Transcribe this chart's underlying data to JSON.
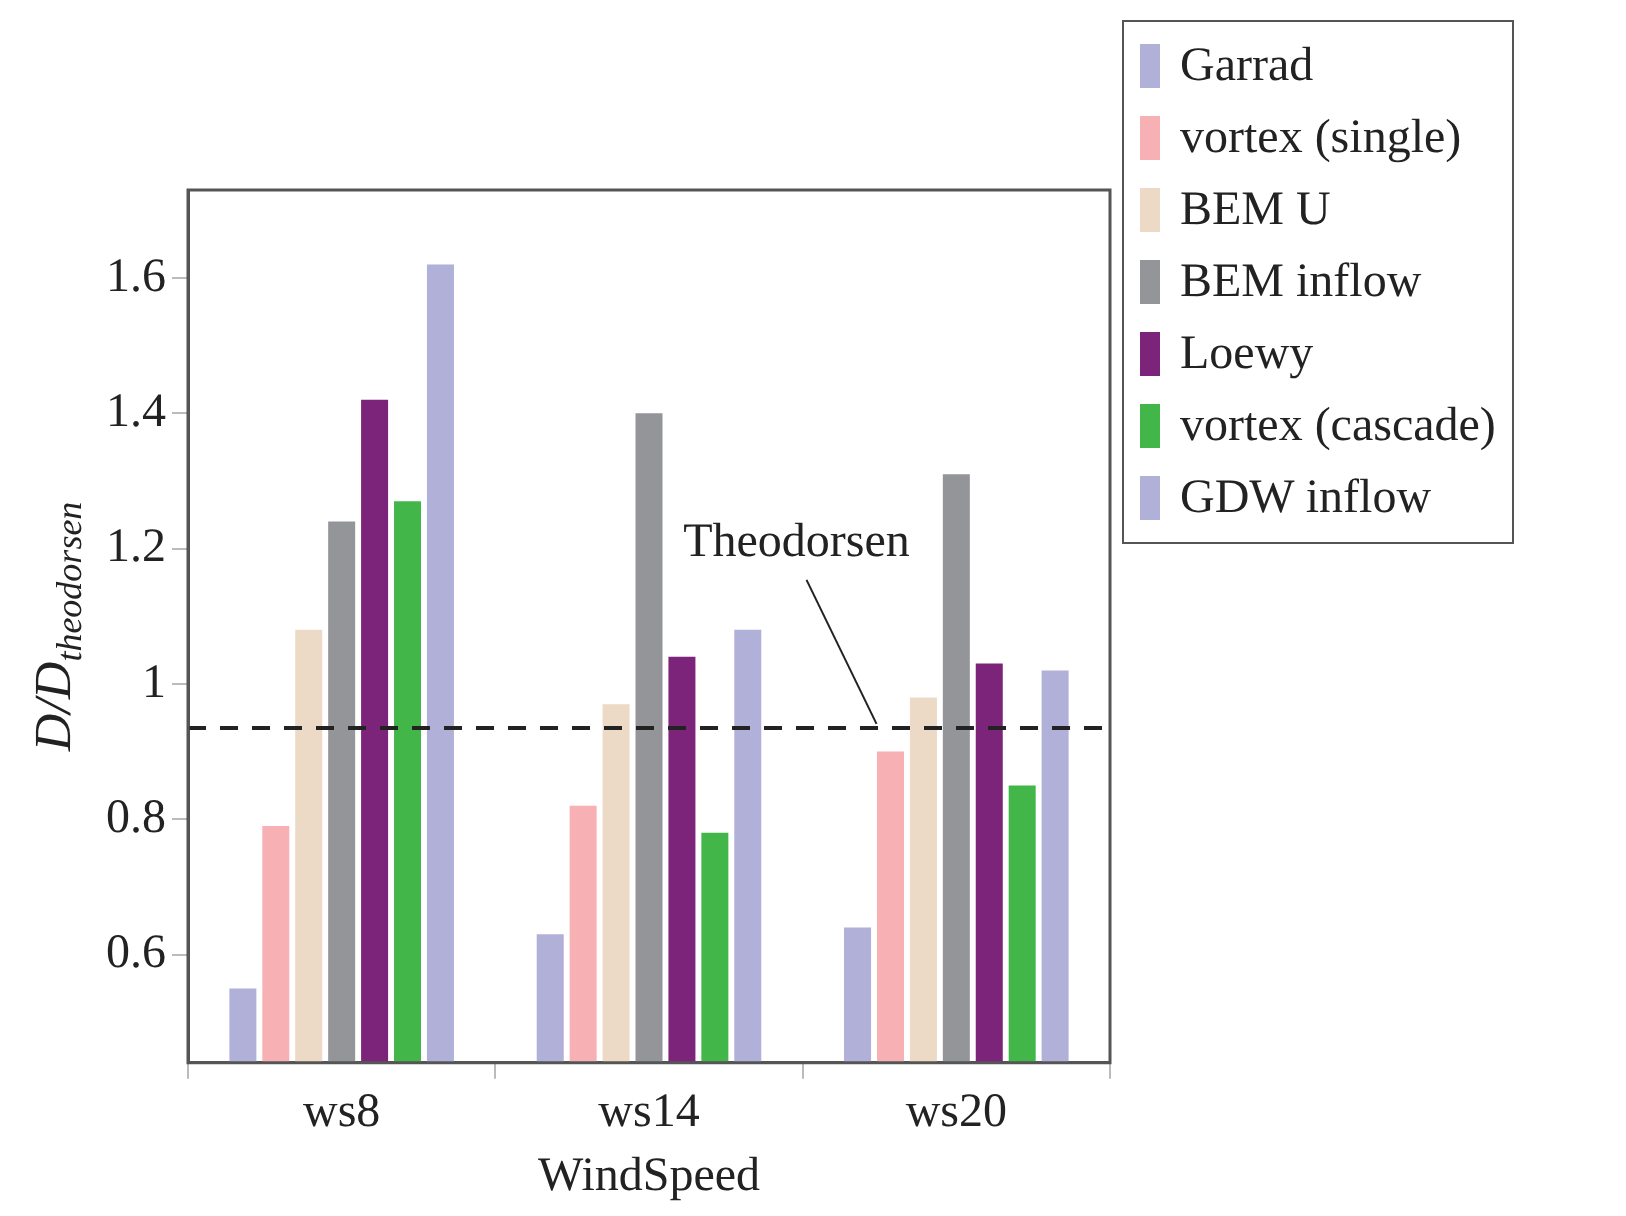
{
  "chart_data": {
    "type": "bar",
    "xlabel": "WindSpeed",
    "ylabel": "D/D$_{theodorsen}$",
    "categories": [
      "ws8",
      "ws14",
      "ws20"
    ],
    "series": [
      {
        "name": "Garrad",
        "color": "#b0b0d8",
        "values": [
          0.55,
          0.63,
          0.64
        ]
      },
      {
        "name": "vortex (single)",
        "color": "#f7b0b3",
        "values": [
          0.79,
          0.82,
          0.9
        ]
      },
      {
        "name": "BEM U",
        "color": "#ecd9c6",
        "values": [
          1.08,
          0.97,
          0.98
        ]
      },
      {
        "name": "BEM inflow",
        "color": "#939598",
        "values": [
          1.24,
          1.4,
          1.31
        ]
      },
      {
        "name": "Loewy",
        "color": "#7b2479",
        "values": [
          1.42,
          1.04,
          1.03
        ]
      },
      {
        "name": "vortex (cascade)",
        "color": "#42b649",
        "values": [
          1.27,
          0.78,
          0.85
        ]
      },
      {
        "name": "GDW inflow",
        "color": "#b0b0d8",
        "values": [
          1.62,
          1.08,
          1.02
        ]
      }
    ],
    "ylim": [
      0.44,
      1.73
    ],
    "yticks": [
      0.6,
      0.8,
      1,
      1.2,
      1.4,
      1.6
    ],
    "ref_lines": [
      {
        "axis": "y",
        "value": 0.935,
        "label": "Theodorsen",
        "line_style": "dashed",
        "color": "#222222"
      }
    ],
    "legend": "top right",
    "grid": false
  }
}
